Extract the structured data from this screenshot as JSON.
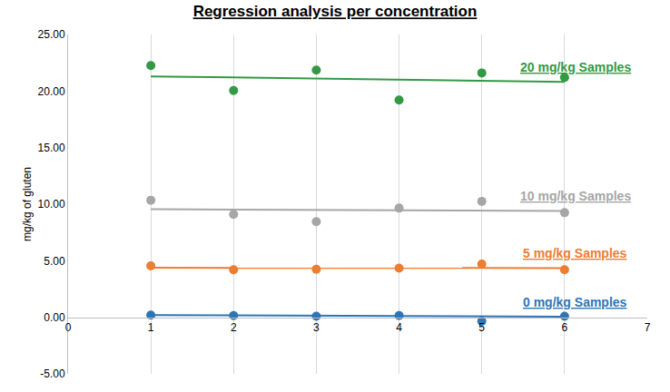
{
  "chart_data": {
    "type": "scatter",
    "title": "Regression analysis per concentration",
    "y_label": "mg/kg of gluten",
    "x": [
      1,
      2,
      3,
      4,
      5,
      6
    ],
    "series": [
      {
        "name": "20 mg/kg Samples",
        "color": "#339944",
        "values": [
          22.25,
          20.05,
          21.85,
          19.2,
          21.6,
          21.2
        ],
        "trend_x": [
          1,
          6
        ],
        "trend_values": [
          21.3,
          20.8
        ]
      },
      {
        "name": "10 mg/kg Samples",
        "color": "#a6a6a6",
        "values": [
          10.35,
          9.1,
          8.45,
          9.65,
          10.25,
          9.25
        ],
        "trend_x": [
          1,
          6
        ],
        "trend_values": [
          9.55,
          9.4
        ]
      },
      {
        "name": "5 mg/kg Samples",
        "color": "#ed7d31",
        "values": [
          4.55,
          4.2,
          4.25,
          4.35,
          4.7,
          4.2
        ],
        "trend_x": [
          1,
          6
        ],
        "trend_values": [
          4.38,
          4.35
        ]
      },
      {
        "name": "0 mg/kg Samples",
        "color": "#2e75b6",
        "values": [
          0.2,
          0.15,
          0.1,
          0.15,
          -0.35,
          0.1
        ],
        "trend_x": [
          1,
          6
        ],
        "trend_values": [
          0.2,
          0.05
        ]
      }
    ],
    "xlim": [
      0,
      7
    ],
    "xticks": [
      0,
      1,
      2,
      3,
      4,
      5,
      6,
      7
    ],
    "ylim": [
      -5,
      25
    ],
    "yticks": [
      {
        "value": -5,
        "label": "-5.00"
      },
      {
        "value": 0,
        "label": "0.00"
      },
      {
        "value": 5,
        "label": "5.00"
      },
      {
        "value": 10,
        "label": "10.00"
      },
      {
        "value": 15,
        "label": "15.00"
      },
      {
        "value": 20,
        "label": "20.00"
      },
      {
        "value": 25,
        "label": "25.00"
      }
    ],
    "grid": true,
    "marker": "circle"
  }
}
